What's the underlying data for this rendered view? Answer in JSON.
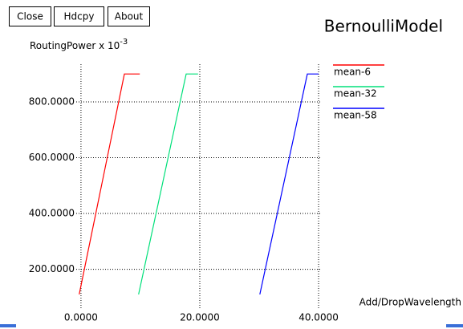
{
  "buttons": [
    "Close",
    "Hdcpy",
    "About"
  ],
  "chart_data": {
    "type": "line",
    "title": "BernoulliModel",
    "ylabel": "RoutingPower x 10",
    "ylabel_exponent": "-3",
    "xlabel": "Add/DropWavelength",
    "xlim": [
      -0.8,
      40.4
    ],
    "ylim": [
      58,
      935
    ],
    "xticks": [
      {
        "value": 0,
        "label": "0.0000"
      },
      {
        "value": 20,
        "label": "20.0000"
      },
      {
        "value": 40,
        "label": "40.0000"
      }
    ],
    "yticks": [
      {
        "value": 200,
        "label": "200.0000"
      },
      {
        "value": 400,
        "label": "400.0000"
      },
      {
        "value": 600,
        "label": "600.0000"
      },
      {
        "value": 800,
        "label": "800.0000"
      }
    ],
    "grid": true,
    "legend": "right",
    "series": [
      {
        "name": "mean-6",
        "color": "#ff0000",
        "x": [
          -0.3,
          7.3,
          9.9
        ],
        "values": [
          110,
          900,
          900
        ]
      },
      {
        "name": "mean-32",
        "color": "#00e07a",
        "x": [
          9.7,
          17.7,
          19.7
        ],
        "values": [
          110,
          900,
          900
        ]
      },
      {
        "name": "mean-58",
        "color": "#0000ff",
        "x": [
          30.1,
          38.1,
          40
        ],
        "values": [
          110,
          900,
          900
        ]
      }
    ]
  }
}
